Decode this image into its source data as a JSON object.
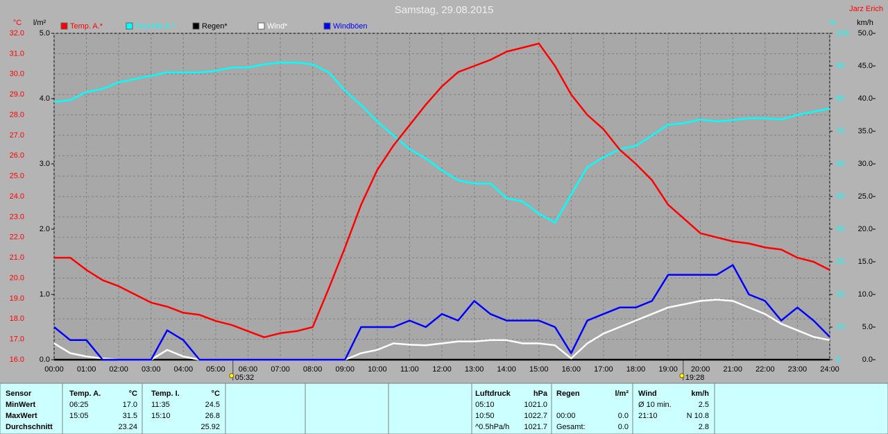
{
  "chart_data": {
    "type": "line",
    "title": "Samstag, 29.08.2015",
    "author": "Jarz Erich",
    "ylabel": "°C",
    "y2label": "%",
    "y3label": "l/m²",
    "y4label": "km/h",
    "x": [
      0,
      0.5,
      1,
      1.5,
      2,
      2.5,
      3,
      3.5,
      4,
      4.5,
      5,
      5.5,
      6,
      6.5,
      7,
      7.5,
      8,
      8.5,
      9,
      9.5,
      10,
      10.5,
      11,
      11.5,
      12,
      12.5,
      13,
      13.5,
      14,
      14.5,
      15,
      15.5,
      16,
      16.5,
      17,
      17.5,
      18,
      18.5,
      19,
      19.5,
      20,
      20.5,
      21,
      21.5,
      22,
      22.5,
      23,
      23.5,
      24
    ],
    "xlim": [
      0,
      24
    ],
    "xticks": [
      {
        "value": 0,
        "label": "00:00"
      },
      {
        "value": 1,
        "label": "01:00"
      },
      {
        "value": 2,
        "label": "02:00"
      },
      {
        "value": 3,
        "label": "03:00"
      },
      {
        "value": 4,
        "label": "04:00"
      },
      {
        "value": 5,
        "label": "05:00"
      },
      {
        "value": 6,
        "label": "06:00"
      },
      {
        "value": 7,
        "label": "07:00"
      },
      {
        "value": 8,
        "label": "08:00"
      },
      {
        "value": 9,
        "label": "09:00"
      },
      {
        "value": 10,
        "label": "10:00"
      },
      {
        "value": 11,
        "label": "11:00"
      },
      {
        "value": 12,
        "label": "12:00"
      },
      {
        "value": 13,
        "label": "13:00"
      },
      {
        "value": 14,
        "label": "14:00"
      },
      {
        "value": 15,
        "label": "15:00"
      },
      {
        "value": 16,
        "label": "16:00"
      },
      {
        "value": 17,
        "label": "17:00"
      },
      {
        "value": 18,
        "label": "18:00"
      },
      {
        "value": 19,
        "label": "19:00"
      },
      {
        "value": 20,
        "label": "20:00"
      },
      {
        "value": 21,
        "label": "21:00"
      },
      {
        "value": 22,
        "label": "22:00"
      },
      {
        "value": 23,
        "label": "23:00"
      },
      {
        "value": 24,
        "label": "24:00"
      }
    ],
    "ylim": [
      16,
      32
    ],
    "yticks": [
      {
        "value": 16,
        "label": "16.0"
      },
      {
        "value": 17,
        "label": "17.0"
      },
      {
        "value": 18,
        "label": "18.0"
      },
      {
        "value": 19,
        "label": "19.0"
      },
      {
        "value": 20,
        "label": "20.0"
      },
      {
        "value": 21,
        "label": "21.0"
      },
      {
        "value": 22,
        "label": "22.0"
      },
      {
        "value": 23,
        "label": "23.0"
      },
      {
        "value": 24,
        "label": "24.0"
      },
      {
        "value": 25,
        "label": "25.0"
      },
      {
        "value": 26,
        "label": "26.0"
      },
      {
        "value": 27,
        "label": "27.0"
      },
      {
        "value": 28,
        "label": "28.0"
      },
      {
        "value": 29,
        "label": "29.0"
      },
      {
        "value": 30,
        "label": "30.0"
      },
      {
        "value": 31,
        "label": "31.0"
      },
      {
        "value": 32,
        "label": "32.0"
      }
    ],
    "y2lim": [
      0,
      100
    ],
    "y2ticks": [
      0,
      10,
      20,
      30,
      40,
      50,
      60,
      70,
      80,
      90,
      100
    ],
    "y3lim": [
      0,
      5
    ],
    "y3ticks": [
      {
        "value": 0,
        "label": "0.0"
      },
      {
        "value": 1,
        "label": "1.0"
      },
      {
        "value": 2,
        "label": "2.0"
      },
      {
        "value": 3,
        "label": "3.0"
      },
      {
        "value": 4,
        "label": "4.0"
      },
      {
        "value": 5,
        "label": "5.0"
      }
    ],
    "y4lim": [
      0,
      50
    ],
    "y4ticks": [
      {
        "value": 0,
        "label": "0.0"
      },
      {
        "value": 5,
        "label": "5.0"
      },
      {
        "value": 10,
        "label": "10.0"
      },
      {
        "value": 15,
        "label": "15.0"
      },
      {
        "value": 20,
        "label": "20.0"
      },
      {
        "value": 25,
        "label": "25.0"
      },
      {
        "value": 30,
        "label": "30.0"
      },
      {
        "value": 35,
        "label": "35.0"
      },
      {
        "value": 40,
        "label": "40.0"
      },
      {
        "value": 45,
        "label": "45.0"
      },
      {
        "value": 50,
        "label": "50.0"
      }
    ],
    "grid": true,
    "annotations": [
      {
        "x": 5.5333,
        "label": "05:32"
      },
      {
        "x": 19.4667,
        "label": "19:28"
      }
    ],
    "series": [
      {
        "name": "Temp. A.*",
        "color": "#ff0000",
        "axis": "y",
        "values": [
          21.0,
          21.0,
          20.4,
          19.9,
          19.6,
          19.2,
          18.8,
          18.6,
          18.3,
          18.2,
          17.9,
          17.7,
          17.4,
          17.1,
          17.3,
          17.4,
          17.6,
          19.5,
          21.5,
          23.6,
          25.3,
          26.5,
          27.5,
          28.5,
          29.4,
          30.1,
          30.4,
          30.7,
          31.1,
          31.3,
          31.5,
          30.4,
          29.0,
          28.0,
          27.3,
          26.3,
          25.6,
          24.8,
          23.6,
          22.9,
          22.2,
          22.0,
          21.8,
          21.7,
          21.5,
          21.4,
          21.0,
          20.8,
          20.4
        ]
      },
      {
        "name": "Feuchte A.*",
        "color": "#00ffff",
        "axis": "y2",
        "values": [
          79,
          79.5,
          82,
          83,
          85,
          86,
          87,
          88,
          88,
          88,
          88.5,
          89.5,
          89.5,
          90.5,
          91,
          91,
          90.5,
          88,
          82.5,
          78,
          73,
          68.7,
          64.5,
          61.7,
          58,
          55,
          54,
          54,
          49.5,
          48.5,
          44.7,
          42,
          50.6,
          59,
          62,
          64.5,
          65.5,
          68.7,
          72,
          72.5,
          73.6,
          73,
          73.4,
          74,
          74,
          73.6,
          75,
          76,
          77
        ]
      },
      {
        "name": "Regen*",
        "color": "#000000",
        "axis": "y3",
        "values": [
          0,
          0,
          0,
          0,
          0,
          0,
          0,
          0,
          0,
          0,
          0,
          0,
          0,
          0,
          0,
          0,
          0,
          0,
          0,
          0,
          0,
          0,
          0,
          0,
          0,
          0,
          0,
          0,
          0,
          0,
          0,
          0,
          0,
          0,
          0,
          0,
          0,
          0,
          0,
          0,
          0,
          0,
          0,
          0,
          0,
          0,
          0,
          0,
          0
        ]
      },
      {
        "name": "Wind*",
        "color": "#ffffff",
        "axis": "y4",
        "values": [
          2.5,
          1.0,
          0.5,
          0.2,
          0,
          0,
          0,
          1.5,
          0.5,
          0,
          0,
          0,
          0,
          0,
          0,
          0,
          0,
          0,
          0,
          1.0,
          1.5,
          2.5,
          2.3,
          2.2,
          2.5,
          2.8,
          2.8,
          3.0,
          3.0,
          2.5,
          2.5,
          2.2,
          0.2,
          2.5,
          4.0,
          5.0,
          6.0,
          7.0,
          8.0,
          8.5,
          9.0,
          9.2,
          9.0,
          8.0,
          7.0,
          5.5,
          4.5,
          3.5,
          3.0
        ]
      },
      {
        "name": "Windböen",
        "color": "#0000ff",
        "axis": "y4",
        "values": [
          5,
          3,
          3,
          0,
          0,
          0,
          0,
          4.5,
          3,
          0,
          0,
          0,
          0,
          0,
          0,
          0,
          0,
          0,
          0,
          5,
          5,
          5,
          6,
          5,
          7,
          6,
          9,
          7,
          6,
          6,
          6,
          5,
          1,
          6,
          7,
          8,
          8,
          9,
          13,
          13,
          13,
          13,
          14.5,
          10,
          9,
          6,
          8,
          6,
          3.5
        ]
      }
    ]
  },
  "stats": {
    "groups": [
      {
        "header": [
          "Sensor"
        ],
        "rows": [
          [
            "MinWert"
          ],
          [
            "MaxWert"
          ],
          [
            "Durchschnitt"
          ]
        ]
      },
      {
        "header": [
          "Temp. A.",
          "°C"
        ],
        "rows": [
          [
            "06:25",
            "17.0"
          ],
          [
            "15:05",
            "31.5"
          ],
          [
            null,
            "23.24"
          ]
        ]
      },
      {
        "header": [
          "Temp. I.",
          "°C"
        ],
        "rows": [
          [
            "11:35",
            "24.5"
          ],
          [
            "15:10",
            "26.8"
          ],
          [
            null,
            "25.92"
          ]
        ]
      },
      {
        "header": [
          "Luftdruck",
          "hPa"
        ],
        "rows": [
          [
            "05:10",
            "1021.0"
          ],
          [
            "10:50",
            "1022.7"
          ],
          [
            "^0.5hPa/h",
            "1021.7"
          ]
        ]
      },
      {
        "header": [
          "Regen",
          "l/m²"
        ],
        "rows": [
          [
            null,
            null
          ],
          [
            "00:00",
            "0.0"
          ],
          [
            "Gesamt:",
            "0.0"
          ]
        ]
      },
      {
        "header": [
          "Wind",
          "km/h"
        ],
        "rows": [
          [
            "Ø 10 min.",
            "2.5"
          ],
          [
            "21:10",
            "N 10.8"
          ],
          [
            null,
            "2.8"
          ]
        ]
      }
    ]
  }
}
